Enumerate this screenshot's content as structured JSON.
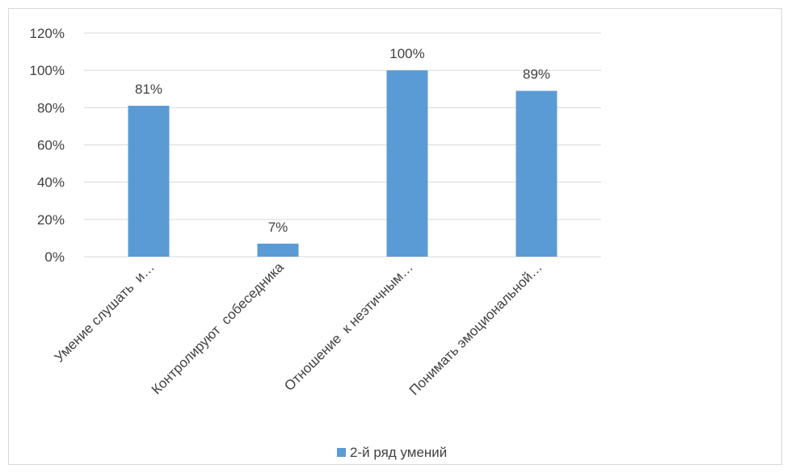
{
  "chart_data": {
    "type": "bar",
    "categories": [
      "Умение слушать  и…",
      "Контролируют  собеседника",
      "Отношение  к неэтичным…",
      "Понимать эмоциональной…"
    ],
    "series": [
      {
        "name": "2-й ряд умений",
        "values": [
          0.81,
          0.07,
          1.0,
          0.89
        ]
      }
    ],
    "data_labels": [
      "81%",
      "7%",
      "100%",
      "89%"
    ],
    "y_ticks": [
      "0%",
      "20%",
      "40%",
      "60%",
      "80%",
      "100%",
      "120%"
    ],
    "ylim": [
      0,
      1.2
    ],
    "grid": true,
    "legend": "bottom",
    "colors": {
      "bar": "#5b9bd5",
      "grid": "#d9d9d9",
      "text": "#404040"
    }
  }
}
